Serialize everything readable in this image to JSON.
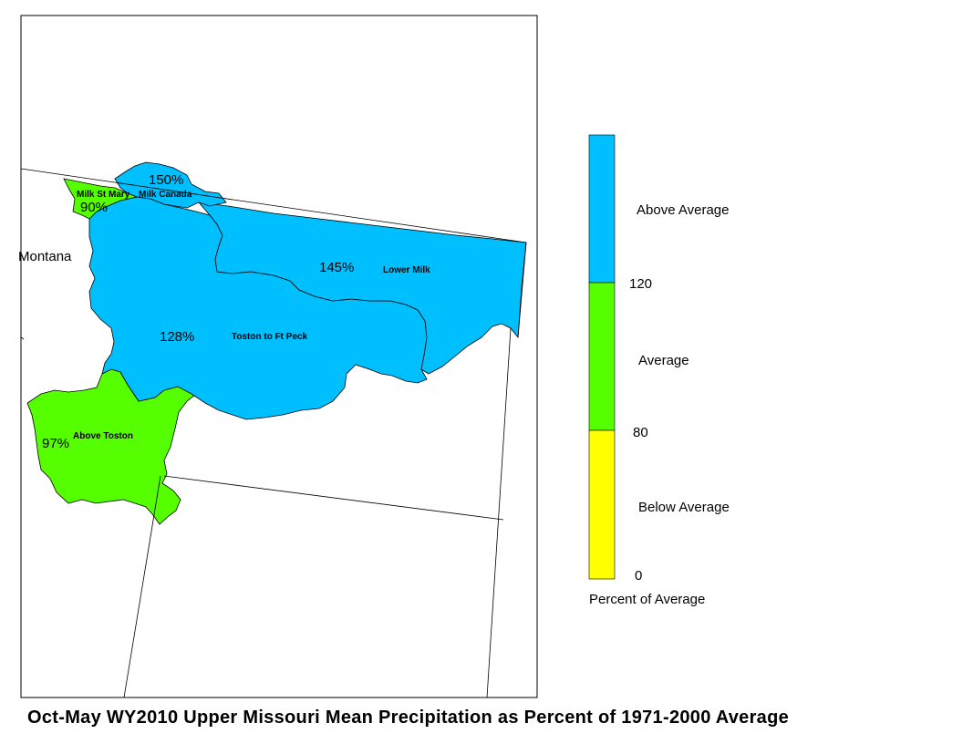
{
  "title": "Oct-May WY2010 Upper Missouri Mean Precipitation as Percent of 1971-2000 Average",
  "state_label": "Montana",
  "basins": [
    {
      "name": "Milk St Mary",
      "percent": "90%",
      "category": "average"
    },
    {
      "name": "Milk Canada",
      "percent": "150%",
      "category": "above"
    },
    {
      "name": "Lower Milk",
      "percent": "145%",
      "category": "above"
    },
    {
      "name": "Toston to Ft Peck",
      "percent": "128%",
      "category": "above"
    },
    {
      "name": "Above Toston",
      "percent": "97%",
      "category": "average"
    }
  ],
  "legend": {
    "title": "Percent of Average",
    "bins": [
      {
        "label": "Above Average",
        "color": "#00bfff",
        "range": [
          120,
          null
        ]
      },
      {
        "label": "Average",
        "color": "#55ff00",
        "range": [
          80,
          120
        ]
      },
      {
        "label": "Below Average",
        "color": "#ffff00",
        "range": [
          0,
          80
        ]
      }
    ],
    "ticks": [
      "120",
      "80",
      "0"
    ]
  },
  "colors": {
    "above": "#00bfff",
    "average": "#55ff00",
    "below": "#ffff00",
    "frame": "#000000",
    "background": "#ffffff"
  }
}
